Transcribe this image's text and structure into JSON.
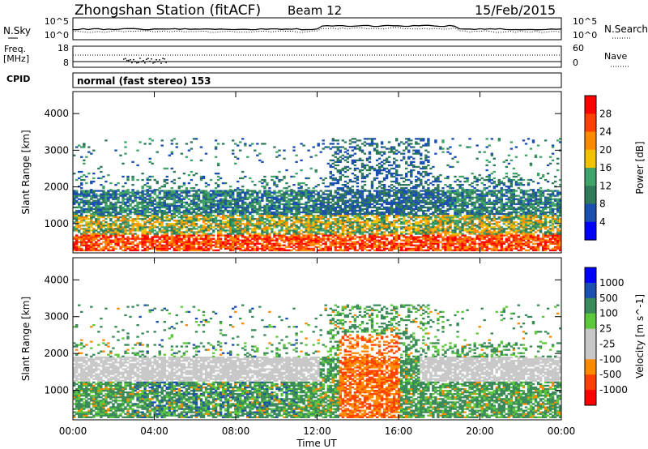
{
  "header": {
    "title": "Zhongshan Station (fitACF)",
    "beam": "Beam 12",
    "date": "15/Feb/2015"
  },
  "strip_labels": {
    "nsky": "N.Sky",
    "nsearch": "N.Search",
    "freq": "Freq.",
    "freq_unit": "[MHz]",
    "nave": "Nave",
    "cpid": "CPID",
    "cpid_value": "normal (fast stereo) 153",
    "pow_left": [
      "10^5",
      "10^0"
    ],
    "pow_right": [
      "10^5",
      "10^0"
    ],
    "freq_ticks": [
      "18",
      "8"
    ],
    "nave_ticks": [
      "60",
      "0"
    ]
  },
  "colors": {
    "power_scale": [
      "#0000ff",
      "#1b4fb0",
      "#2f7a5a",
      "#3fa36a",
      "#f2c200",
      "#ff8a00",
      "#ff4000",
      "#ff0000"
    ],
    "velocity_scale": [
      "#ff0000",
      "#ff4000",
      "#ff8a00",
      "#c8c8c8",
      "#c8c8c8",
      "#5ec83c",
      "#3a8a5a",
      "#1b4fb0",
      "#0000ff"
    ]
  },
  "chart_data": [
    {
      "type": "heatmap",
      "title": "",
      "xlabel": "Time UT",
      "ylabel": "Slant Range [km]",
      "x_ticks": [
        "00:00",
        "04:00",
        "08:00",
        "12:00",
        "16:00",
        "20:00",
        "00:00"
      ],
      "y_ticks": [
        "1000",
        "2000",
        "3000",
        "4000"
      ],
      "ylim": [
        200,
        4600
      ],
      "colorbar_label": "Power [dB]",
      "colorbar_ticks": [
        "4",
        "8",
        "12",
        "16",
        "20",
        "24",
        "28"
      ],
      "range_bands": [
        {
          "range_km": [
            250,
            700
          ],
          "level": "high"
        },
        {
          "range_km": [
            700,
            1200
          ],
          "level": "medium"
        },
        {
          "range_km": [
            1200,
            1900
          ],
          "level": "low"
        }
      ]
    },
    {
      "type": "heatmap",
      "title": "",
      "xlabel": "Time UT",
      "ylabel": "Slant Range [km]",
      "x_ticks": [
        "00:00",
        "04:00",
        "08:00",
        "12:00",
        "16:00",
        "20:00",
        "00:00"
      ],
      "y_ticks": [
        "1000",
        "2000",
        "3000",
        "4000"
      ],
      "ylim": [
        200,
        4600
      ],
      "colorbar_label": "Velocity [m s^-1]",
      "colorbar_ticks": [
        "1000",
        "500",
        "100",
        "25",
        "-25",
        "-100",
        "-500",
        "-1000"
      ]
    }
  ]
}
